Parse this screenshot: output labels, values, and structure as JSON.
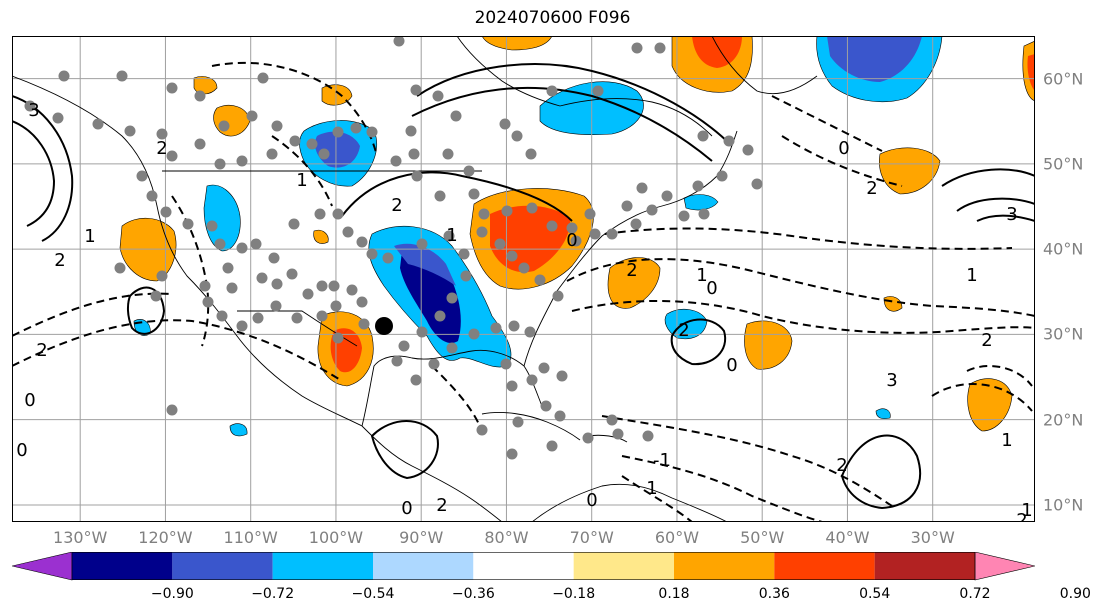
{
  "title": "2024070600 F096",
  "lat_labels": [
    {
      "text": "60°N",
      "value": 60
    },
    {
      "text": "50°N",
      "value": 50
    },
    {
      "text": "40°N",
      "value": 40
    },
    {
      "text": "30°N",
      "value": 30
    },
    {
      "text": "20°N",
      "value": 20
    },
    {
      "text": "10°N",
      "value": 10
    }
  ],
  "lon_labels": [
    {
      "text": "130°W",
      "value": -130
    },
    {
      "text": "120°W",
      "value": -120
    },
    {
      "text": "110°W",
      "value": -110
    },
    {
      "text": "100°W",
      "value": -100
    },
    {
      "text": "90°W",
      "value": -90
    },
    {
      "text": "80°W",
      "value": -80
    },
    {
      "text": "70°W",
      "value": -70
    },
    {
      "text": "60°W",
      "value": -60
    },
    {
      "text": "50°W",
      "value": -50
    },
    {
      "text": "40°W",
      "value": -40
    },
    {
      "text": "30°W",
      "value": -30
    }
  ],
  "extent": {
    "lon_min": -138,
    "lon_max": -18,
    "lat_min": 8,
    "lat_max": 65
  },
  "colorbar": {
    "ticks": [
      "−0.90",
      "−0.72",
      "−0.54",
      "−0.36",
      "−0.18",
      "0.18",
      "0.36",
      "0.54",
      "0.72",
      "0.90"
    ],
    "colors": [
      "#9b30d0",
      "#00008b",
      "#3a56cc",
      "#00bfff",
      "#add8ff",
      "#ffffff",
      "#ffe88a",
      "#ffa500",
      "#ff4000",
      "#b22222",
      "#ff85b3"
    ]
  },
  "contour_labels": [
    "2",
    "1",
    "2",
    "0",
    "3",
    "2",
    "1",
    "2",
    "1",
    "0",
    "2",
    "0",
    "0",
    "2",
    "3",
    "2",
    "1",
    "2",
    "1",
    "2",
    "-1",
    "1",
    "0",
    "2",
    "0",
    "1",
    "2",
    "1",
    "3",
    "0",
    "0"
  ],
  "colors": {
    "positive": "#ffa500",
    "strong_positive": "#ff4000",
    "negative": "#00bfff",
    "mid_negative": "#3a56cc",
    "strong_negative": "#00008b",
    "station": "#808080",
    "grid": "#a0a0a0"
  }
}
